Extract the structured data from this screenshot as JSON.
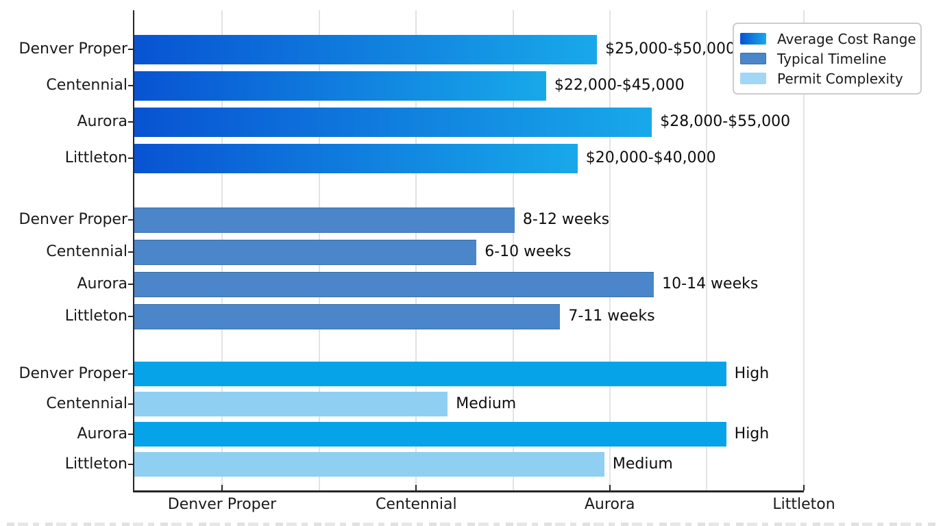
{
  "chart_data": {
    "type": "bar",
    "orientation": "horizontal",
    "title": "",
    "grid": "vertical-light-gray",
    "x_axis": {
      "tick_labels": [
        "Denver Proper",
        "Centennial",
        "Aurora",
        "Littleton"
      ]
    },
    "legend": {
      "position": "upper-right",
      "items": [
        {
          "label": "Average Cost Range",
          "swatch": "cost-gradient"
        },
        {
          "label": "Typical Timeline",
          "swatch": "timeline"
        },
        {
          "label": "Permit Complexity",
          "swatch": "permit"
        }
      ]
    },
    "groups": [
      {
        "series": "Average Cost Range",
        "style": "cost",
        "bars": [
          {
            "category": "Denver Proper",
            "value_label": "$25,000-$50,000",
            "length_pct": 69.1
          },
          {
            "category": "Centennial",
            "value_label": "$22,000-$45,000",
            "length_pct": 61.5
          },
          {
            "category": "Aurora",
            "value_label": "$28,000-$55,000",
            "length_pct": 77.3
          },
          {
            "category": "Littleton",
            "value_label": "$20,000-$40,000",
            "length_pct": 66.2
          }
        ]
      },
      {
        "series": "Typical Timeline",
        "style": "timeline",
        "bars": [
          {
            "category": "Denver Proper",
            "value_label": "8-12 weeks",
            "length_pct": 56.8
          },
          {
            "category": "Centennial",
            "value_label": "6-10 weeks",
            "length_pct": 51.1
          },
          {
            "category": "Aurora",
            "value_label": "10-14 weeks",
            "length_pct": 77.6
          },
          {
            "category": "Littleton",
            "value_label": "7-11 weeks",
            "length_pct": 63.6
          }
        ]
      },
      {
        "series": "Permit Complexity",
        "style": "complexity",
        "bars": [
          {
            "category": "Denver Proper",
            "value_label": "High",
            "level": "high",
            "length_pct": 88.4
          },
          {
            "category": "Centennial",
            "value_label": "Medium",
            "level": "medium",
            "length_pct": 46.8
          },
          {
            "category": "Aurora",
            "value_label": "High",
            "level": "high",
            "length_pct": 88.4
          },
          {
            "category": "Littleton",
            "value_label": "Medium",
            "level": "medium",
            "length_pct": 70.2
          }
        ]
      }
    ],
    "colors": {
      "cost_gradient_start": "#0853d2",
      "cost_gradient_end": "#18a9ea",
      "timeline": "#4a86c9",
      "complexity_high": "#07a3e8",
      "complexity_medium": "#8fd0f2",
      "legend_permit_swatch": "#a2d6f5",
      "gridline": "#e3e3e3",
      "axis": "#262626"
    }
  }
}
